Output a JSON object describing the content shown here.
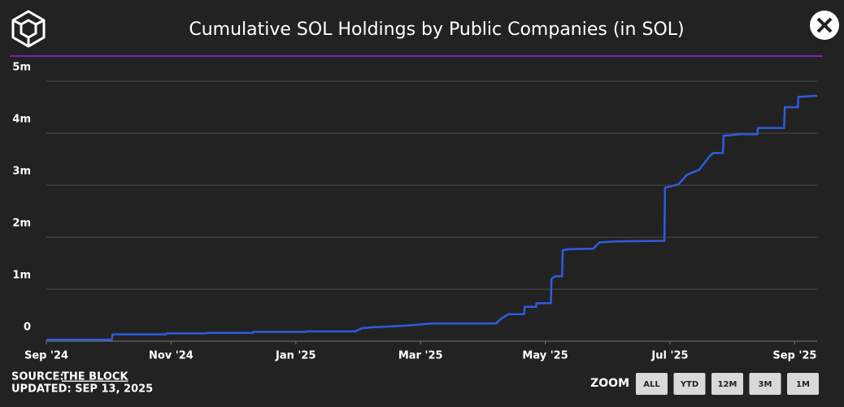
{
  "chart_data": {
    "type": "line",
    "title": "Cumulative SOL Holdings by Public Companies (in SOL)",
    "x": [
      0,
      1.05,
      1.06,
      1.92,
      1.93,
      2.57,
      2.58,
      3.31,
      3.32,
      4.18,
      4.19,
      4.96,
      4.97,
      5.06,
      5.25,
      5.45,
      5.78,
      6.17,
      7.21,
      7.28,
      7.41,
      7.66,
      7.67,
      7.85,
      7.86,
      8.09,
      8.1,
      8.16,
      8.27,
      8.28,
      8.38,
      8.77,
      8.87,
      9.17,
      9.91,
      9.92,
      10.14,
      10.27,
      10.47,
      10.63,
      10.69,
      10.85,
      10.86,
      11.12,
      11.4,
      11.41,
      11.83,
      11.84,
      12.05,
      12.06,
      12.36
    ],
    "values": [
      30000,
      30000,
      130000,
      130000,
      150000,
      150000,
      160000,
      160000,
      180000,
      180000,
      190000,
      190000,
      200000,
      250000,
      270000,
      280000,
      300000,
      340000,
      340000,
      420000,
      520000,
      520000,
      660000,
      660000,
      730000,
      730000,
      1200000,
      1250000,
      1250000,
      1750000,
      1770000,
      1780000,
      1900000,
      1920000,
      1930000,
      2950000,
      3020000,
      3200000,
      3300000,
      3550000,
      3620000,
      3620000,
      3950000,
      3980000,
      3980000,
      4100000,
      4100000,
      4500000,
      4500000,
      4700000,
      4720000
    ],
    "color": "#2f5be0",
    "xlim": [
      0,
      12.36
    ],
    "xticks": [
      {
        "value": 0,
        "label": "Sep '24"
      },
      {
        "value": 2,
        "label": "Nov '24"
      },
      {
        "value": 4,
        "label": "Jan '25"
      },
      {
        "value": 6,
        "label": "Mar '25"
      },
      {
        "value": 8,
        "label": "May '25"
      },
      {
        "value": 10,
        "label": "Jul '25"
      },
      {
        "value": 12,
        "label": "Sep '25"
      }
    ],
    "ylim": [
      0,
      5000000
    ],
    "yticks": [
      0,
      {
        "value": 1000000,
        "label": "1m"
      },
      {
        "value": 2000000,
        "label": "2m"
      },
      {
        "value": 3000000,
        "label": "3m"
      },
      {
        "value": 4000000,
        "label": "4m"
      },
      {
        "value": 5000000,
        "label": "5m"
      }
    ],
    "grid": true
  },
  "footer": {
    "source_label": "SOURCE:",
    "source": "THE BLOCK",
    "updated": "UPDATED: SEP 13, 2025"
  },
  "zoom": {
    "label": "ZOOM",
    "buttons": [
      "ALL",
      "YTD",
      "12M",
      "3M",
      "1M"
    ]
  }
}
